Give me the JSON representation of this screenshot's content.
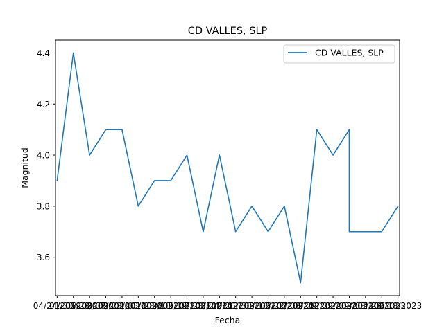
{
  "chart_data": {
    "type": "line",
    "title": "CD VALLES, SLP",
    "xlabel": "Fecha",
    "ylabel": "Magnitud",
    "ylim": [
      3.45,
      4.45
    ],
    "yticks": [
      3.6,
      3.8,
      4.0,
      4.2,
      4.4
    ],
    "ytick_labels": [
      "3.6",
      "3.8",
      "4.0",
      "4.2",
      "4.4"
    ],
    "x_index_range": [
      -0.1,
      21.1
    ],
    "xticks": [
      0,
      1,
      2,
      3,
      4,
      5,
      6,
      7,
      8,
      9,
      10,
      11,
      12,
      13,
      14,
      15,
      16,
      17,
      18,
      19,
      20,
      21
    ],
    "xtick_labels": [
      "04/24/2019",
      "01/30/2020",
      "05/28/2020",
      "08/07/2020",
      "09/23/2020",
      "11/05/2020",
      "01/28/2021",
      "03/10/2021",
      "05/19/2021",
      "07/23/2021",
      "08/24/2021",
      "10/26/2021",
      "12/30/2021",
      "03/16/2022",
      "05/22/2022",
      "07/08/2022",
      "09/29/2022",
      "12/29/2022",
      "02/09/2023",
      "03/03/2023",
      "04/22/2023",
      "06/18/2023"
    ],
    "legend_position": "upper right",
    "grid": false,
    "series": [
      {
        "name": "CD VALLES, SLP",
        "color": "#1f77b4",
        "points": [
          {
            "x": 0,
            "y": 3.9
          },
          {
            "x": 1,
            "y": 4.4
          },
          {
            "x": 2,
            "y": 4.0
          },
          {
            "x": 3,
            "y": 4.1
          },
          {
            "x": 4,
            "y": 4.1
          },
          {
            "x": 5,
            "y": 3.8
          },
          {
            "x": 6,
            "y": 3.9
          },
          {
            "x": 7,
            "y": 3.9
          },
          {
            "x": 8,
            "y": 4.0
          },
          {
            "x": 9,
            "y": 3.7
          },
          {
            "x": 10,
            "y": 4.0
          },
          {
            "x": 11,
            "y": 3.7
          },
          {
            "x": 12,
            "y": 3.8
          },
          {
            "x": 13,
            "y": 3.7
          },
          {
            "x": 14,
            "y": 3.8
          },
          {
            "x": 15,
            "y": 3.5
          },
          {
            "x": 16,
            "y": 4.1
          },
          {
            "x": 17,
            "y": 4.0
          },
          {
            "x": 18,
            "y": 4.1
          },
          {
            "x": 18,
            "y": 3.7
          },
          {
            "x": 19,
            "y": 3.7
          },
          {
            "x": 20,
            "y": 3.7
          },
          {
            "x": 21,
            "y": 3.8
          }
        ]
      }
    ]
  }
}
